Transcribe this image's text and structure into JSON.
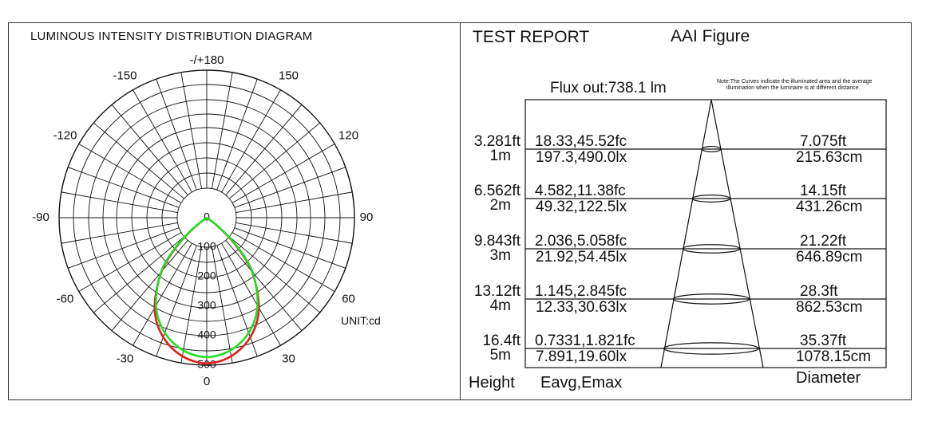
{
  "left_panel": {
    "title": "LUMINOUS INTENSITY DISTRIBUTION DIAGRAM",
    "unit": "UNIT:cd"
  },
  "right_panel": {
    "title": "TEST REPORT",
    "subtitle": "AAI Figure",
    "flux": "Flux out:738.1 lm",
    "note_line1": "Note:The Curves indicate the illuminated area and the average",
    "note_line2": "illumination when the luminaire is at different distance.",
    "footer_height": "Height",
    "footer_values": "Eavg,Emax",
    "footer_diameter": "Diameter"
  },
  "colors": {
    "c0_curve": "#e02020",
    "c90_curve": "#22dd22",
    "grid": "#111111"
  },
  "chart_data": [
    {
      "type": "polar",
      "title": "LUMINOUS INTENSITY DISTRIBUTION DIAGRAM",
      "unit": "UNIT:cd",
      "angle_labels": [
        "-/+180",
        "150",
        "120",
        "90",
        "60",
        "30",
        "0",
        "-30",
        "-60",
        "-90",
        "-120",
        "-150"
      ],
      "radial_labels": [
        "0",
        "100",
        "200",
        "300",
        "400",
        "500"
      ],
      "rmax": 500,
      "series": [
        {
          "color": "#e02020",
          "angles": [
            0,
            10,
            20,
            30,
            40,
            45,
            50,
            55,
            60
          ],
          "values": [
            500,
            482,
            438,
            366,
            250,
            170,
            90,
            30,
            0
          ]
        },
        {
          "color": "#22dd22",
          "angles": [
            0,
            10,
            20,
            30,
            40,
            45,
            50,
            55,
            60
          ],
          "values": [
            478,
            462,
            422,
            355,
            252,
            178,
            98,
            35,
            0
          ]
        }
      ]
    },
    {
      "type": "table",
      "title": "TEST REPORT",
      "columns": [
        "Height",
        "Eavg,Emax",
        "Diameter"
      ],
      "rows": [
        {
          "height_ft": "3.281ft",
          "height_m": "1m",
          "eavg_emax_fc": "18.33,45.52fc",
          "eavg_emax_lx": "197.3,490.0lx",
          "diameter_ft": "7.075ft",
          "diameter_cm": "215.63cm"
        },
        {
          "height_ft": "6.562ft",
          "height_m": "2m",
          "eavg_emax_fc": "4.582,11.38fc",
          "eavg_emax_lx": "49.32,122.5lx",
          "diameter_ft": "14.15ft",
          "diameter_cm": "431.26cm"
        },
        {
          "height_ft": "9.843ft",
          "height_m": "3m",
          "eavg_emax_fc": "2.036,5.058fc",
          "eavg_emax_lx": "21.92,54.45lx",
          "diameter_ft": "21.22ft",
          "diameter_cm": "646.89cm"
        },
        {
          "height_ft": "13.12ft",
          "height_m": "4m",
          "eavg_emax_fc": "1.145,2.845fc",
          "eavg_emax_lx": "12.33,30.63lx",
          "diameter_ft": "28.3ft",
          "diameter_cm": "862.53cm"
        },
        {
          "height_ft": "16.4ft",
          "height_m": "5m",
          "eavg_emax_fc": "0.7331,1.821fc",
          "eavg_emax_lx": "7.891,19.60lx",
          "diameter_ft": "35.37ft",
          "diameter_cm": "1078.15cm"
        }
      ]
    }
  ]
}
